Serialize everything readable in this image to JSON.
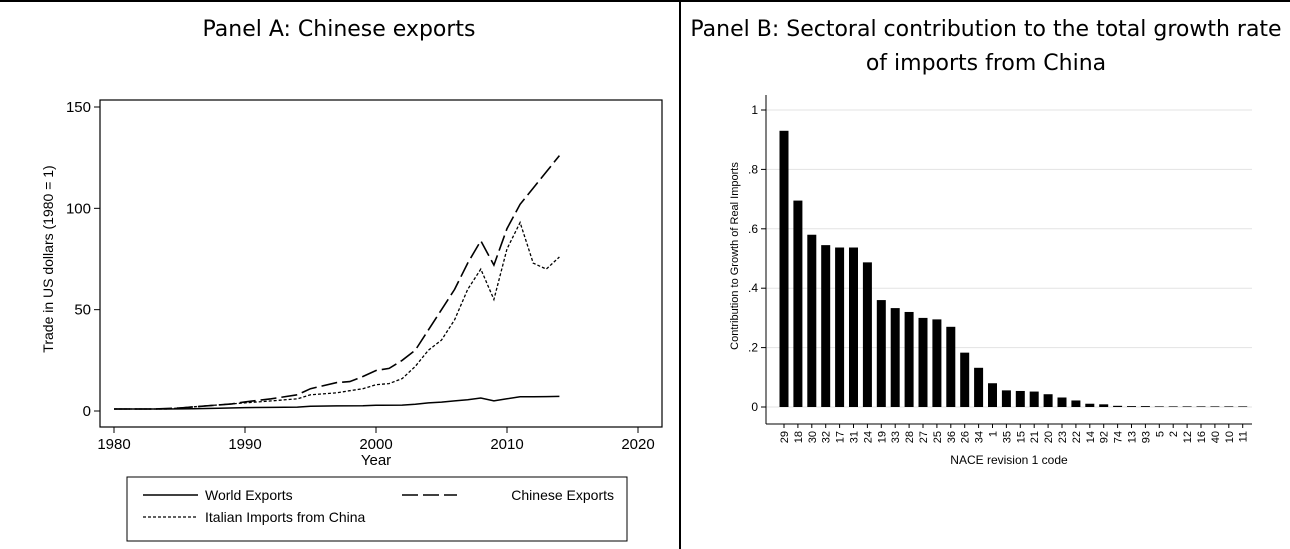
{
  "panel_a": {
    "title": "Panel A: Chinese exports",
    "chart_data": {
      "type": "line",
      "title": "Panel A: Chinese exports",
      "xlabel": "Year",
      "ylabel": "Trade in US dollars (1980 = 1)",
      "xlim": [
        1980,
        2020
      ],
      "ylim": [
        0,
        150
      ],
      "x_ticks": [
        1980,
        1990,
        2000,
        2010,
        2020
      ],
      "y_ticks": [
        0,
        50,
        100,
        150
      ],
      "grid": false,
      "legend_position": "bottom",
      "series": [
        {
          "name": "World Exports",
          "style": "solid",
          "points": [
            [
              1980,
              1
            ],
            [
              1982,
              1
            ],
            [
              1984,
              1
            ],
            [
              1986,
              1.1
            ],
            [
              1988,
              1.4
            ],
            [
              1990,
              1.7
            ],
            [
              1992,
              1.8
            ],
            [
              1994,
              1.9
            ],
            [
              1995,
              2.3
            ],
            [
              1997,
              2.5
            ],
            [
              1999,
              2.6
            ],
            [
              2000,
              2.8
            ],
            [
              2002,
              2.9
            ],
            [
              2003,
              3.3
            ],
            [
              2004,
              4.0
            ],
            [
              2005,
              4.4
            ],
            [
              2006,
              5.0
            ],
            [
              2007,
              5.6
            ],
            [
              2008,
              6.4
            ],
            [
              2009,
              5.0
            ],
            [
              2010,
              6.0
            ],
            [
              2011,
              7.0
            ],
            [
              2012,
              7.0
            ],
            [
              2013,
              7.1
            ],
            [
              2014,
              7.2
            ]
          ]
        },
        {
          "name": "Chinese Exports",
          "style": "longdash",
          "points": [
            [
              1980,
              1
            ],
            [
              1983,
              1
            ],
            [
              1985,
              1.5
            ],
            [
              1987,
              2.5
            ],
            [
              1989,
              3.5
            ],
            [
              1990,
              4.5
            ],
            [
              1992,
              6
            ],
            [
              1994,
              8
            ],
            [
              1995,
              11
            ],
            [
              1997,
              14
            ],
            [
              1998,
              14.5
            ],
            [
              1999,
              17
            ],
            [
              2000,
              20
            ],
            [
              2001,
              21
            ],
            [
              2002,
              25
            ],
            [
              2003,
              30
            ],
            [
              2004,
              40
            ],
            [
              2005,
              50
            ],
            [
              2006,
              60
            ],
            [
              2007,
              73
            ],
            [
              2008,
              84
            ],
            [
              2009,
              72
            ],
            [
              2010,
              90
            ],
            [
              2011,
              102
            ],
            [
              2012,
              110
            ],
            [
              2013,
              118
            ],
            [
              2014,
              126
            ]
          ]
        },
        {
          "name": "Italian Imports from China",
          "style": "dotted",
          "points": [
            [
              1980,
              1
            ],
            [
              1984,
              1
            ],
            [
              1986,
              2
            ],
            [
              1988,
              3
            ],
            [
              1990,
              4
            ],
            [
              1992,
              5
            ],
            [
              1994,
              6
            ],
            [
              1995,
              8
            ],
            [
              1997,
              9
            ],
            [
              1998,
              10
            ],
            [
              1999,
              11
            ],
            [
              2000,
              13
            ],
            [
              2001,
              13.5
            ],
            [
              2002,
              16
            ],
            [
              2003,
              22
            ],
            [
              2004,
              30
            ],
            [
              2005,
              35
            ],
            [
              2006,
              45
            ],
            [
              2007,
              60
            ],
            [
              2008,
              70
            ],
            [
              2009,
              55
            ],
            [
              2010,
              80
            ],
            [
              2011,
              93
            ],
            [
              2012,
              73
            ],
            [
              2013,
              70
            ],
            [
              2014,
              76
            ]
          ]
        }
      ]
    }
  },
  "panel_b": {
    "title": "Panel B: Sectoral contribution to the total growth rate of imports from China",
    "chart_data": {
      "type": "bar",
      "title": "Panel B: Sectoral contribution to the total growth rate of imports from China",
      "xlabel": "NACE revision 1 code",
      "ylabel": "Contribution to Growth of Real Imports",
      "ylim": [
        0,
        1
      ],
      "y_ticks": [
        0,
        0.2,
        0.4,
        0.6,
        0.8,
        1
      ],
      "y_tick_labels": [
        "0",
        ".2",
        ".4",
        ".6",
        ".8",
        "1"
      ],
      "grid": true,
      "categories": [
        "29",
        "18",
        "30",
        "32",
        "17",
        "31",
        "24",
        "19",
        "33",
        "28",
        "27",
        "25",
        "36",
        "26",
        "34",
        "1",
        "35",
        "15",
        "21",
        "20",
        "23",
        "22",
        "14",
        "92",
        "74",
        "13",
        "93",
        "5",
        "2",
        "12",
        "16",
        "40",
        "10",
        "11"
      ],
      "values": [
        0.93,
        0.695,
        0.58,
        0.545,
        0.537,
        0.537,
        0.487,
        0.36,
        0.333,
        0.32,
        0.3,
        0.295,
        0.27,
        0.183,
        0.132,
        0.08,
        0.056,
        0.054,
        0.052,
        0.043,
        0.032,
        0.022,
        0.011,
        0.009,
        0.004,
        0.003,
        0.003,
        0.002,
        0.001,
        0.001,
        0.001,
        0.001,
        0.001,
        0.001
      ]
    }
  }
}
